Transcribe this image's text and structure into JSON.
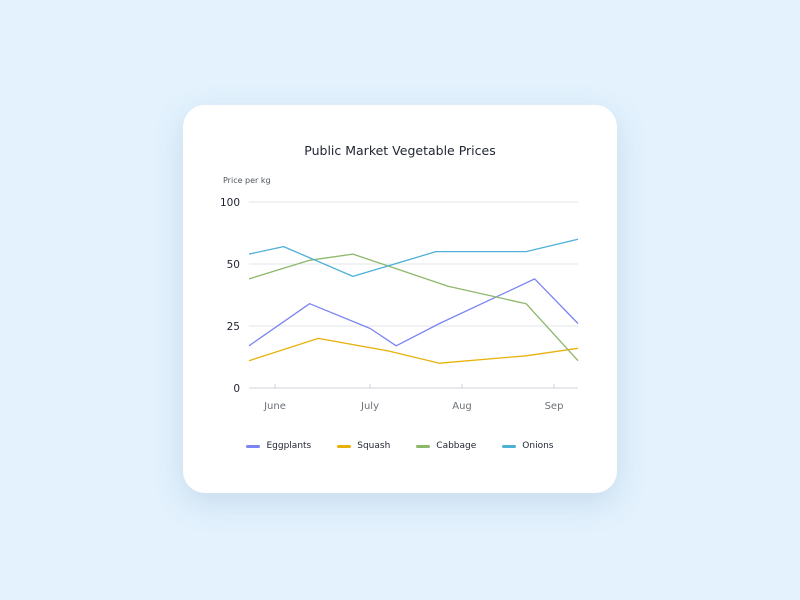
{
  "chart_data": {
    "type": "line",
    "title": "Public Market Vegetable Prices",
    "ylabel": "Price per kg",
    "xlabel": "",
    "y_ticks": [
      0,
      25,
      50,
      100
    ],
    "x_ticks": [
      "June",
      "July",
      "Aug",
      "Sep"
    ],
    "grid": "horizontal",
    "legend_position": "bottom",
    "series": [
      {
        "name": "Eggplants",
        "color": "#7b85f2",
        "points": [
          [
            0.9,
            17
          ],
          [
            1.25,
            34
          ],
          [
            1.6,
            24
          ],
          [
            1.75,
            17
          ],
          [
            2.0,
            26
          ],
          [
            2.55,
            44
          ],
          [
            2.8,
            26
          ]
        ]
      },
      {
        "name": "Squash",
        "color": "#e8b10c",
        "points": [
          [
            0.9,
            11
          ],
          [
            1.3,
            20
          ],
          [
            1.7,
            15
          ],
          [
            2.0,
            10
          ],
          [
            2.5,
            13
          ],
          [
            2.8,
            16
          ]
        ]
      },
      {
        "name": "Cabbage",
        "color": "#8db86a",
        "points": [
          [
            0.9,
            44
          ],
          [
            1.25,
            53
          ],
          [
            1.5,
            58
          ],
          [
            2.05,
            41
          ],
          [
            2.5,
            34
          ],
          [
            2.8,
            11
          ]
        ]
      },
      {
        "name": "Onions",
        "color": "#4db0d6",
        "points": [
          [
            0.9,
            58
          ],
          [
            1.1,
            64
          ],
          [
            1.5,
            45
          ],
          [
            1.98,
            60
          ],
          [
            2.5,
            60
          ],
          [
            2.8,
            70
          ]
        ]
      }
    ]
  }
}
